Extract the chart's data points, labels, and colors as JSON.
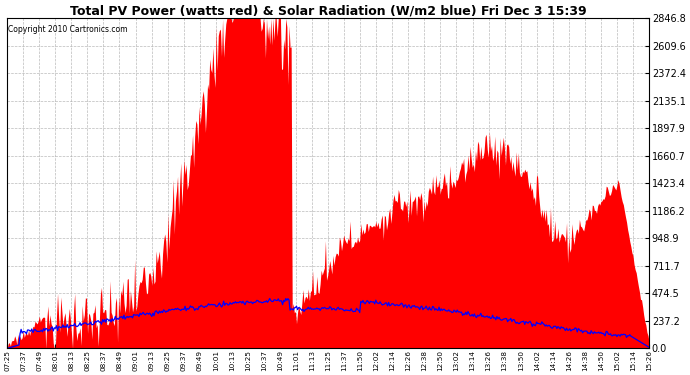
{
  "title": "Total PV Power (watts red) & Solar Radiation (W/m2 blue) Fri Dec 3 15:39",
  "copyright": "Copyright 2010 Cartronics.com",
  "yticks": [
    0.0,
    237.2,
    474.5,
    711.7,
    948.9,
    1186.2,
    1423.4,
    1660.7,
    1897.9,
    2135.1,
    2372.4,
    2609.6,
    2846.8
  ],
  "ymax": 2846.8,
  "background_color": "#ffffff",
  "plot_bg_color": "#ffffff",
  "grid_color": "#aaaaaa",
  "red_color": "#ff0000",
  "blue_color": "#0000ff",
  "xtick_labels": [
    "07:25",
    "07:37",
    "07:49",
    "08:01",
    "08:13",
    "08:25",
    "08:37",
    "08:49",
    "09:01",
    "09:13",
    "09:25",
    "09:37",
    "09:49",
    "10:01",
    "10:13",
    "10:25",
    "10:37",
    "10:49",
    "11:01",
    "11:13",
    "11:25",
    "11:37",
    "11:50",
    "12:02",
    "12:14",
    "12:26",
    "12:38",
    "12:50",
    "13:02",
    "13:14",
    "13:26",
    "13:38",
    "13:50",
    "14:02",
    "14:14",
    "14:26",
    "14:38",
    "14:50",
    "15:02",
    "15:14",
    "15:26"
  ]
}
